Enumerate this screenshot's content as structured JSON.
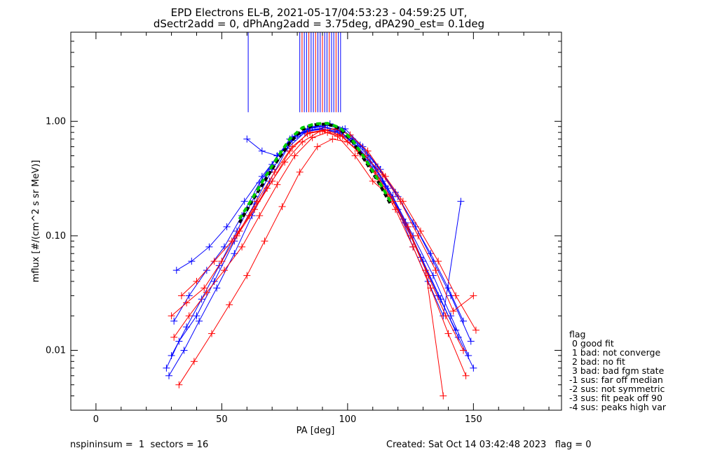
{
  "titles": {
    "line1": "EPD Electrons EL-B, 2021-05-17/04:53:23 - 04:59:25 UT,",
    "line2": "dSectr2add = 0, dPhAng2add = 3.75deg, dPA290_est=   0.1deg"
  },
  "footer": {
    "left": "nspininsum =  1  sectors = 16",
    "right": "Created: Sat Oct 14 03:42:48 2023   flag = 0"
  },
  "legend": {
    "title": "flag",
    "items": [
      " 0 good fit",
      " 1 bad: not converge",
      " 2 bad: no fit",
      " 3 bad: bad fgm state",
      "-1 sus: far off median",
      "-2 sus: not symmetric",
      "-3 sus: fit peak off 90",
      "-4 sus: peaks high var"
    ]
  },
  "colors": {
    "series_a": "#0000ff",
    "series_b": "#ff0000",
    "median": "#000000",
    "fit": "#00cc00"
  },
  "chart_data": {
    "type": "line",
    "xlabel": "PA [deg]",
    "ylabel": "mflux [#/(cm^2 s sr MeV)]",
    "xlim": [
      -10,
      185
    ],
    "ylim": [
      0.003,
      6.0
    ],
    "yscale": "log",
    "xticks": [
      0,
      50,
      100,
      150
    ],
    "xtick_labels": [
      "0",
      "50",
      "100",
      "150"
    ],
    "yticks": [
      0.01,
      0.1,
      1.0
    ],
    "ytick_labels": [
      "0.01",
      "0.10",
      "1.00"
    ],
    "marker": "+",
    "series": [
      {
        "color": "blue",
        "x": [
          28,
          33,
          40,
          47,
          55,
          63,
          70,
          78,
          85,
          91,
          97,
          104,
          111,
          118,
          126,
          134,
          141,
          148
        ],
        "y": [
          0.007,
          0.012,
          0.02,
          0.04,
          0.09,
          0.19,
          0.38,
          0.68,
          0.84,
          0.88,
          0.82,
          0.6,
          0.4,
          0.22,
          0.1,
          0.045,
          0.02,
          0.009
        ]
      },
      {
        "color": "blue",
        "x": [
          30,
          36,
          42,
          49,
          56,
          63,
          70,
          77,
          84,
          90,
          96,
          102,
          109,
          116,
          123,
          130,
          137,
          144,
          150
        ],
        "y": [
          0.009,
          0.016,
          0.028,
          0.055,
          0.11,
          0.22,
          0.42,
          0.7,
          0.86,
          0.9,
          0.84,
          0.66,
          0.44,
          0.26,
          0.13,
          0.06,
          0.028,
          0.013,
          0.007
        ]
      },
      {
        "color": "blue",
        "x": [
          31,
          37,
          44,
          51,
          58,
          65,
          72,
          79,
          86,
          92,
          98,
          105,
          112,
          119,
          126,
          133,
          140,
          146
        ],
        "y": [
          0.018,
          0.03,
          0.05,
          0.08,
          0.15,
          0.29,
          0.5,
          0.74,
          0.88,
          0.92,
          0.85,
          0.62,
          0.4,
          0.24,
          0.13,
          0.07,
          0.035,
          0.018
        ]
      },
      {
        "color": "blue",
        "x": [
          29,
          35,
          41,
          48,
          55,
          62,
          69,
          76,
          83,
          89,
          95,
          101,
          108,
          115,
          122,
          129,
          136,
          143
        ],
        "y": [
          0.006,
          0.01,
          0.018,
          0.035,
          0.07,
          0.15,
          0.3,
          0.58,
          0.8,
          0.86,
          0.82,
          0.68,
          0.45,
          0.27,
          0.14,
          0.065,
          0.03,
          0.015
        ]
      },
      {
        "color": "blue",
        "x": [
          32,
          38,
          45,
          52,
          59,
          66,
          73,
          80,
          87,
          93,
          99,
          106,
          113,
          120,
          127,
          134,
          141,
          149
        ],
        "y": [
          0.05,
          0.06,
          0.08,
          0.12,
          0.2,
          0.33,
          0.52,
          0.76,
          0.9,
          0.95,
          0.86,
          0.6,
          0.38,
          0.22,
          0.12,
          0.06,
          0.03,
          0.012
        ]
      },
      {
        "color": "blue",
        "x": [
          60,
          66,
          72,
          78,
          84,
          90,
          96,
          102,
          108,
          114,
          120,
          126,
          132,
          138,
          145
        ],
        "y": [
          0.7,
          0.55,
          0.5,
          0.72,
          0.82,
          0.85,
          0.8,
          0.7,
          0.5,
          0.3,
          0.17,
          0.08,
          0.04,
          0.02,
          0.2
        ]
      },
      {
        "color": "red",
        "x": [
          30,
          36,
          43,
          50,
          57,
          64,
          71,
          78,
          85,
          91,
          97,
          104,
          111,
          118,
          125,
          132,
          139,
          146
        ],
        "y": [
          0.02,
          0.026,
          0.035,
          0.06,
          0.11,
          0.2,
          0.36,
          0.6,
          0.8,
          0.84,
          0.76,
          0.55,
          0.36,
          0.2,
          0.1,
          0.045,
          0.02,
          0.01
        ]
      },
      {
        "color": "red",
        "x": [
          31,
          37,
          44,
          51,
          58,
          65,
          72,
          79,
          86,
          92,
          98,
          105,
          112,
          119,
          126,
          133,
          140,
          147
        ],
        "y": [
          0.013,
          0.02,
          0.032,
          0.05,
          0.08,
          0.15,
          0.28,
          0.5,
          0.72,
          0.8,
          0.74,
          0.52,
          0.32,
          0.17,
          0.08,
          0.035,
          0.014,
          0.006
        ]
      },
      {
        "color": "red",
        "x": [
          33,
          39,
          46,
          53,
          60,
          67,
          74,
          81,
          88,
          94,
          100,
          107,
          114,
          121,
          128,
          135,
          142,
          150
        ],
        "y": [
          0.005,
          0.008,
          0.014,
          0.025,
          0.045,
          0.09,
          0.18,
          0.36,
          0.6,
          0.7,
          0.66,
          0.5,
          0.34,
          0.2,
          0.1,
          0.05,
          0.022,
          0.03
        ]
      },
      {
        "color": "red",
        "x": [
          34,
          40,
          47,
          54,
          61,
          68,
          75,
          82,
          89,
          95,
          101,
          108,
          115,
          122,
          129,
          136,
          143,
          151
        ],
        "y": [
          0.03,
          0.04,
          0.06,
          0.09,
          0.15,
          0.26,
          0.44,
          0.66,
          0.82,
          0.86,
          0.76,
          0.55,
          0.33,
          0.2,
          0.11,
          0.06,
          0.03,
          0.015
        ]
      },
      {
        "color": "red",
        "x": [
          56,
          63,
          70,
          77,
          84,
          90,
          96,
          103,
          110,
          117,
          124,
          131,
          138
        ],
        "y": [
          0.1,
          0.17,
          0.3,
          0.55,
          0.78,
          0.82,
          0.74,
          0.5,
          0.3,
          0.22,
          0.12,
          0.05,
          0.004
        ]
      },
      {
        "color": "median",
        "x": [
          57,
          62,
          67,
          72,
          77,
          82,
          87,
          92,
          97,
          102,
          107,
          112,
          117
        ],
        "y": [
          0.13,
          0.2,
          0.3,
          0.45,
          0.65,
          0.85,
          0.93,
          0.95,
          0.86,
          0.66,
          0.45,
          0.3,
          0.19
        ]
      },
      {
        "color": "fit",
        "x": [
          57,
          62,
          67,
          72,
          77,
          82,
          87,
          92,
          97,
          102,
          107,
          112,
          117
        ],
        "y": [
          0.14,
          0.21,
          0.32,
          0.48,
          0.7,
          0.88,
          0.95,
          0.96,
          0.88,
          0.68,
          0.47,
          0.31,
          0.2
        ]
      }
    ]
  }
}
